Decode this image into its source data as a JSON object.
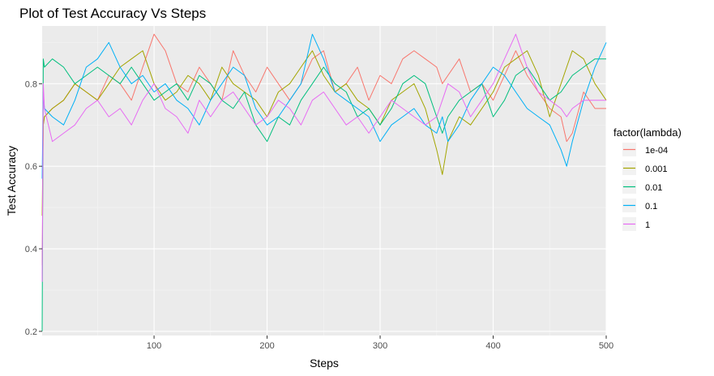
{
  "chart_data": {
    "type": "line",
    "title": "Plot of Test Accuracy Vs Steps",
    "xlabel": "Steps",
    "ylabel": "Test Accuracy",
    "xlim": [
      1,
      500
    ],
    "ylim": [
      0.19,
      0.94
    ],
    "x_ticks": [
      100,
      200,
      300,
      400,
      500
    ],
    "y_ticks": [
      0.2,
      0.4,
      0.6,
      0.8
    ],
    "x_tick_labels": [
      "100",
      "200",
      "300",
      "400",
      "500"
    ],
    "y_tick_labels": [
      "0.2",
      "0.4",
      "0.6",
      "0.8"
    ],
    "grid": true,
    "background": "#ebebeb",
    "legend_title": "factor(lambda)",
    "legend_position": "right",
    "x": [
      1,
      2,
      3,
      10,
      20,
      30,
      40,
      50,
      60,
      70,
      80,
      90,
      100,
      110,
      120,
      130,
      140,
      150,
      160,
      170,
      180,
      190,
      200,
      210,
      220,
      230,
      240,
      250,
      260,
      270,
      280,
      290,
      300,
      310,
      320,
      330,
      340,
      350,
      355,
      360,
      370,
      380,
      390,
      400,
      410,
      420,
      430,
      440,
      450,
      460,
      465,
      470,
      480,
      490,
      500
    ],
    "series": [
      {
        "name": "1e-04",
        "color": "#F8766D",
        "values": [
          0.36,
          0.7,
          0.72,
          0.74,
          0.76,
          0.8,
          0.78,
          0.76,
          0.82,
          0.8,
          0.76,
          0.84,
          0.92,
          0.88,
          0.8,
          0.78,
          0.84,
          0.8,
          0.76,
          0.88,
          0.82,
          0.78,
          0.84,
          0.8,
          0.76,
          0.8,
          0.86,
          0.88,
          0.78,
          0.8,
          0.84,
          0.76,
          0.82,
          0.8,
          0.86,
          0.88,
          0.86,
          0.84,
          0.8,
          0.82,
          0.86,
          0.78,
          0.8,
          0.76,
          0.82,
          0.88,
          0.82,
          0.78,
          0.74,
          0.72,
          0.66,
          0.68,
          0.78,
          0.74,
          0.74
        ]
      },
      {
        "name": "0.001",
        "color": "#A3A500",
        "values": [
          0.48,
          0.7,
          0.72,
          0.74,
          0.76,
          0.8,
          0.78,
          0.76,
          0.8,
          0.84,
          0.86,
          0.88,
          0.8,
          0.76,
          0.78,
          0.82,
          0.8,
          0.76,
          0.84,
          0.8,
          0.78,
          0.76,
          0.72,
          0.78,
          0.8,
          0.84,
          0.88,
          0.82,
          0.78,
          0.8,
          0.76,
          0.74,
          0.7,
          0.76,
          0.78,
          0.8,
          0.74,
          0.64,
          0.58,
          0.66,
          0.72,
          0.7,
          0.74,
          0.78,
          0.84,
          0.86,
          0.88,
          0.82,
          0.72,
          0.8,
          0.84,
          0.88,
          0.86,
          0.8,
          0.76
        ]
      },
      {
        "name": "0.01",
        "color": "#00BF7D",
        "values": [
          0.2,
          0.86,
          0.84,
          0.86,
          0.84,
          0.8,
          0.82,
          0.84,
          0.82,
          0.8,
          0.84,
          0.8,
          0.76,
          0.78,
          0.8,
          0.76,
          0.82,
          0.8,
          0.76,
          0.74,
          0.78,
          0.7,
          0.66,
          0.72,
          0.7,
          0.76,
          0.8,
          0.84,
          0.8,
          0.78,
          0.72,
          0.74,
          0.7,
          0.74,
          0.8,
          0.82,
          0.8,
          0.72,
          0.68,
          0.72,
          0.76,
          0.78,
          0.8,
          0.72,
          0.76,
          0.82,
          0.84,
          0.8,
          0.76,
          0.78,
          0.8,
          0.82,
          0.84,
          0.86,
          0.86
        ]
      },
      {
        "name": "0.1",
        "color": "#00B0F6",
        "values": [
          0.57,
          0.78,
          0.74,
          0.72,
          0.7,
          0.76,
          0.84,
          0.86,
          0.9,
          0.84,
          0.8,
          0.82,
          0.78,
          0.8,
          0.76,
          0.74,
          0.7,
          0.76,
          0.8,
          0.84,
          0.82,
          0.74,
          0.7,
          0.72,
          0.76,
          0.8,
          0.92,
          0.86,
          0.78,
          0.76,
          0.74,
          0.72,
          0.66,
          0.7,
          0.72,
          0.74,
          0.7,
          0.68,
          0.72,
          0.66,
          0.7,
          0.76,
          0.8,
          0.84,
          0.82,
          0.78,
          0.74,
          0.72,
          0.7,
          0.64,
          0.6,
          0.66,
          0.76,
          0.84,
          0.9
        ]
      },
      {
        "name": "1",
        "color": "#E76BF3",
        "values": [
          0.32,
          0.8,
          0.74,
          0.66,
          0.68,
          0.7,
          0.74,
          0.76,
          0.72,
          0.74,
          0.7,
          0.76,
          0.8,
          0.74,
          0.72,
          0.68,
          0.76,
          0.72,
          0.76,
          0.78,
          0.74,
          0.7,
          0.72,
          0.76,
          0.74,
          0.7,
          0.76,
          0.78,
          0.74,
          0.7,
          0.72,
          0.68,
          0.72,
          0.76,
          0.74,
          0.72,
          0.7,
          0.72,
          0.76,
          0.8,
          0.78,
          0.72,
          0.76,
          0.8,
          0.86,
          0.92,
          0.84,
          0.78,
          0.76,
          0.74,
          0.72,
          0.74,
          0.76,
          0.76,
          0.76
        ]
      }
    ]
  }
}
